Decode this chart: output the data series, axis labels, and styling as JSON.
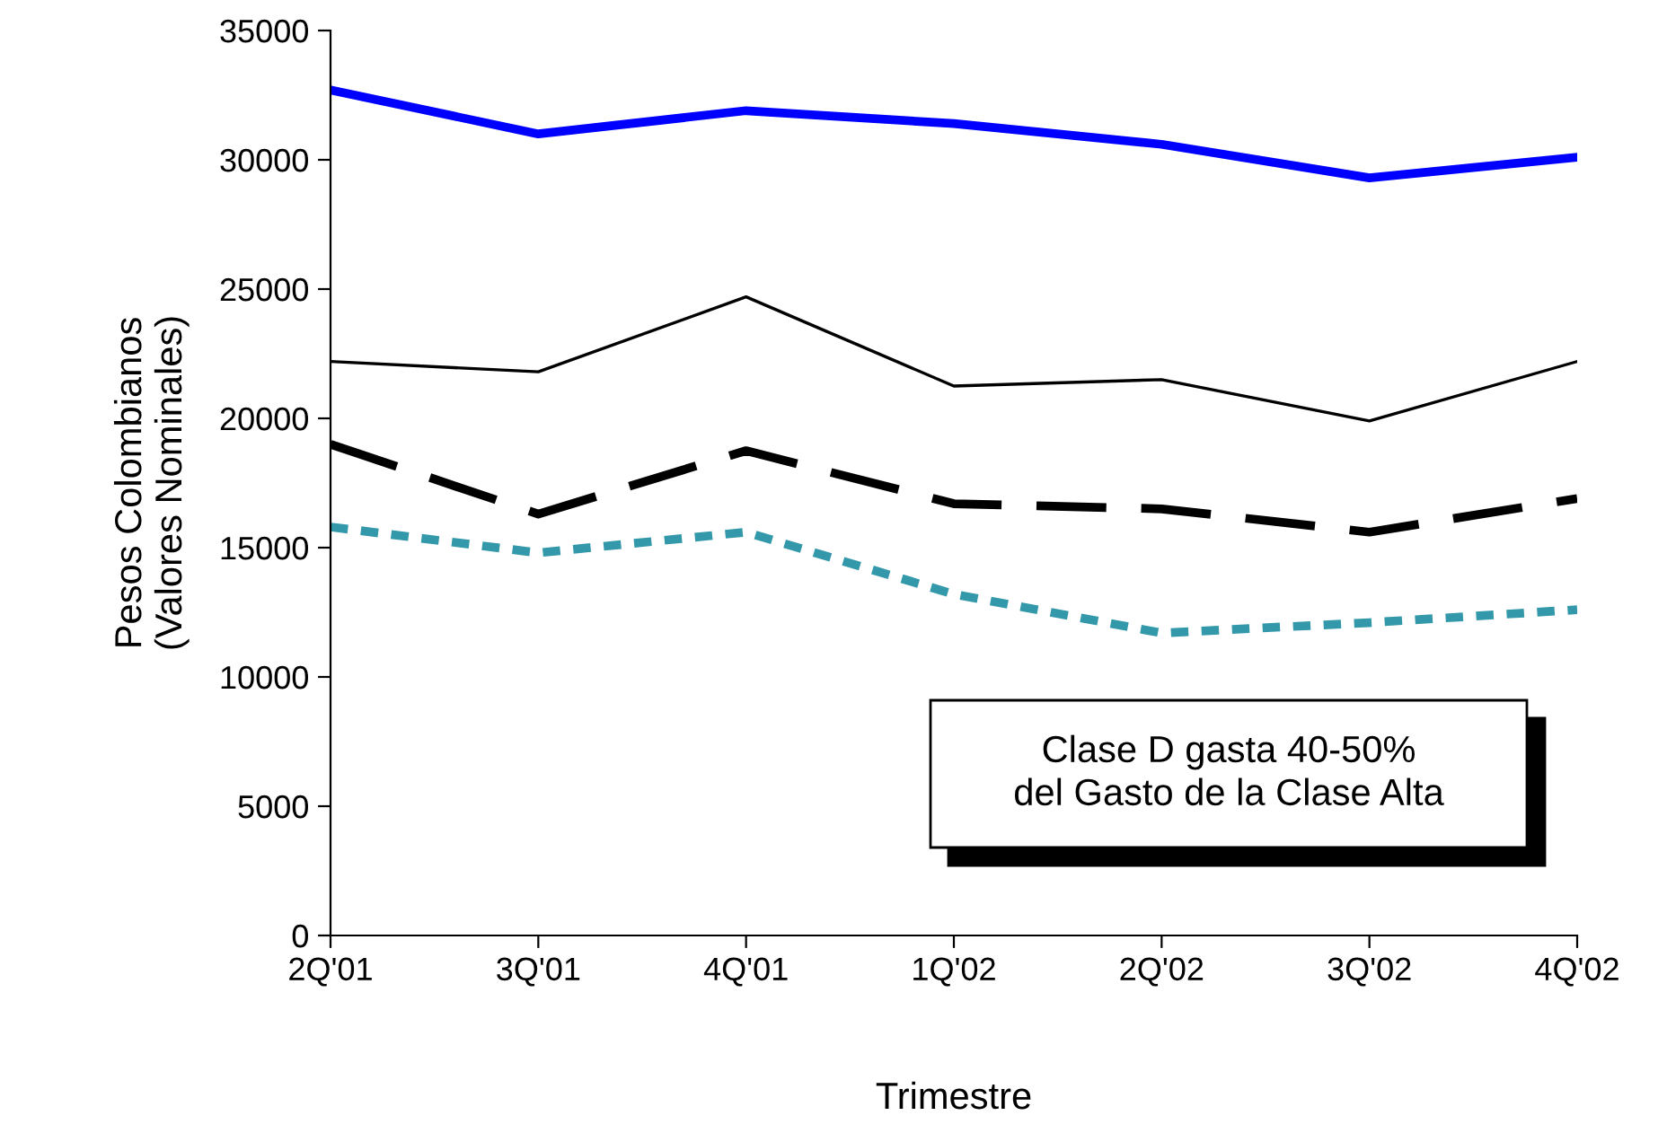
{
  "chart_data": {
    "type": "line",
    "xlabel": "Trimestre",
    "ylabel": "Pesos Colombianos\n(Valores Nominales)",
    "categories": [
      "2Q'01",
      "3Q'01",
      "4Q'01",
      "1Q'02",
      "2Q'02",
      "3Q'02",
      "4Q'02"
    ],
    "series": [
      {
        "color": "#0000ff",
        "line_style": "solid",
        "values": [
          32700,
          31000,
          31900,
          31400,
          30600,
          29300,
          30100
        ]
      },
      {
        "color": "#000000",
        "line_style": "solid",
        "values": [
          22200,
          21800,
          24700,
          21250,
          21500,
          19900,
          22200
        ]
      },
      {
        "color": "#000000",
        "line_style": "dashed",
        "values": [
          19000,
          16300,
          18750,
          16700,
          16500,
          15600,
          16900
        ]
      },
      {
        "color": "#3399aa",
        "line_style": "dotted",
        "values": [
          15800,
          14800,
          15600,
          13200,
          11700,
          12100,
          12600
        ]
      }
    ],
    "ylim": [
      0,
      35000
    ],
    "yticks": [
      0,
      5000,
      10000,
      15000,
      20000,
      25000,
      30000,
      35000
    ],
    "grid": false,
    "legend": false,
    "marker": "none",
    "annotations": [
      "Clase D gasta 40-50%\ndel Gasto de la Clase Alta"
    ]
  }
}
